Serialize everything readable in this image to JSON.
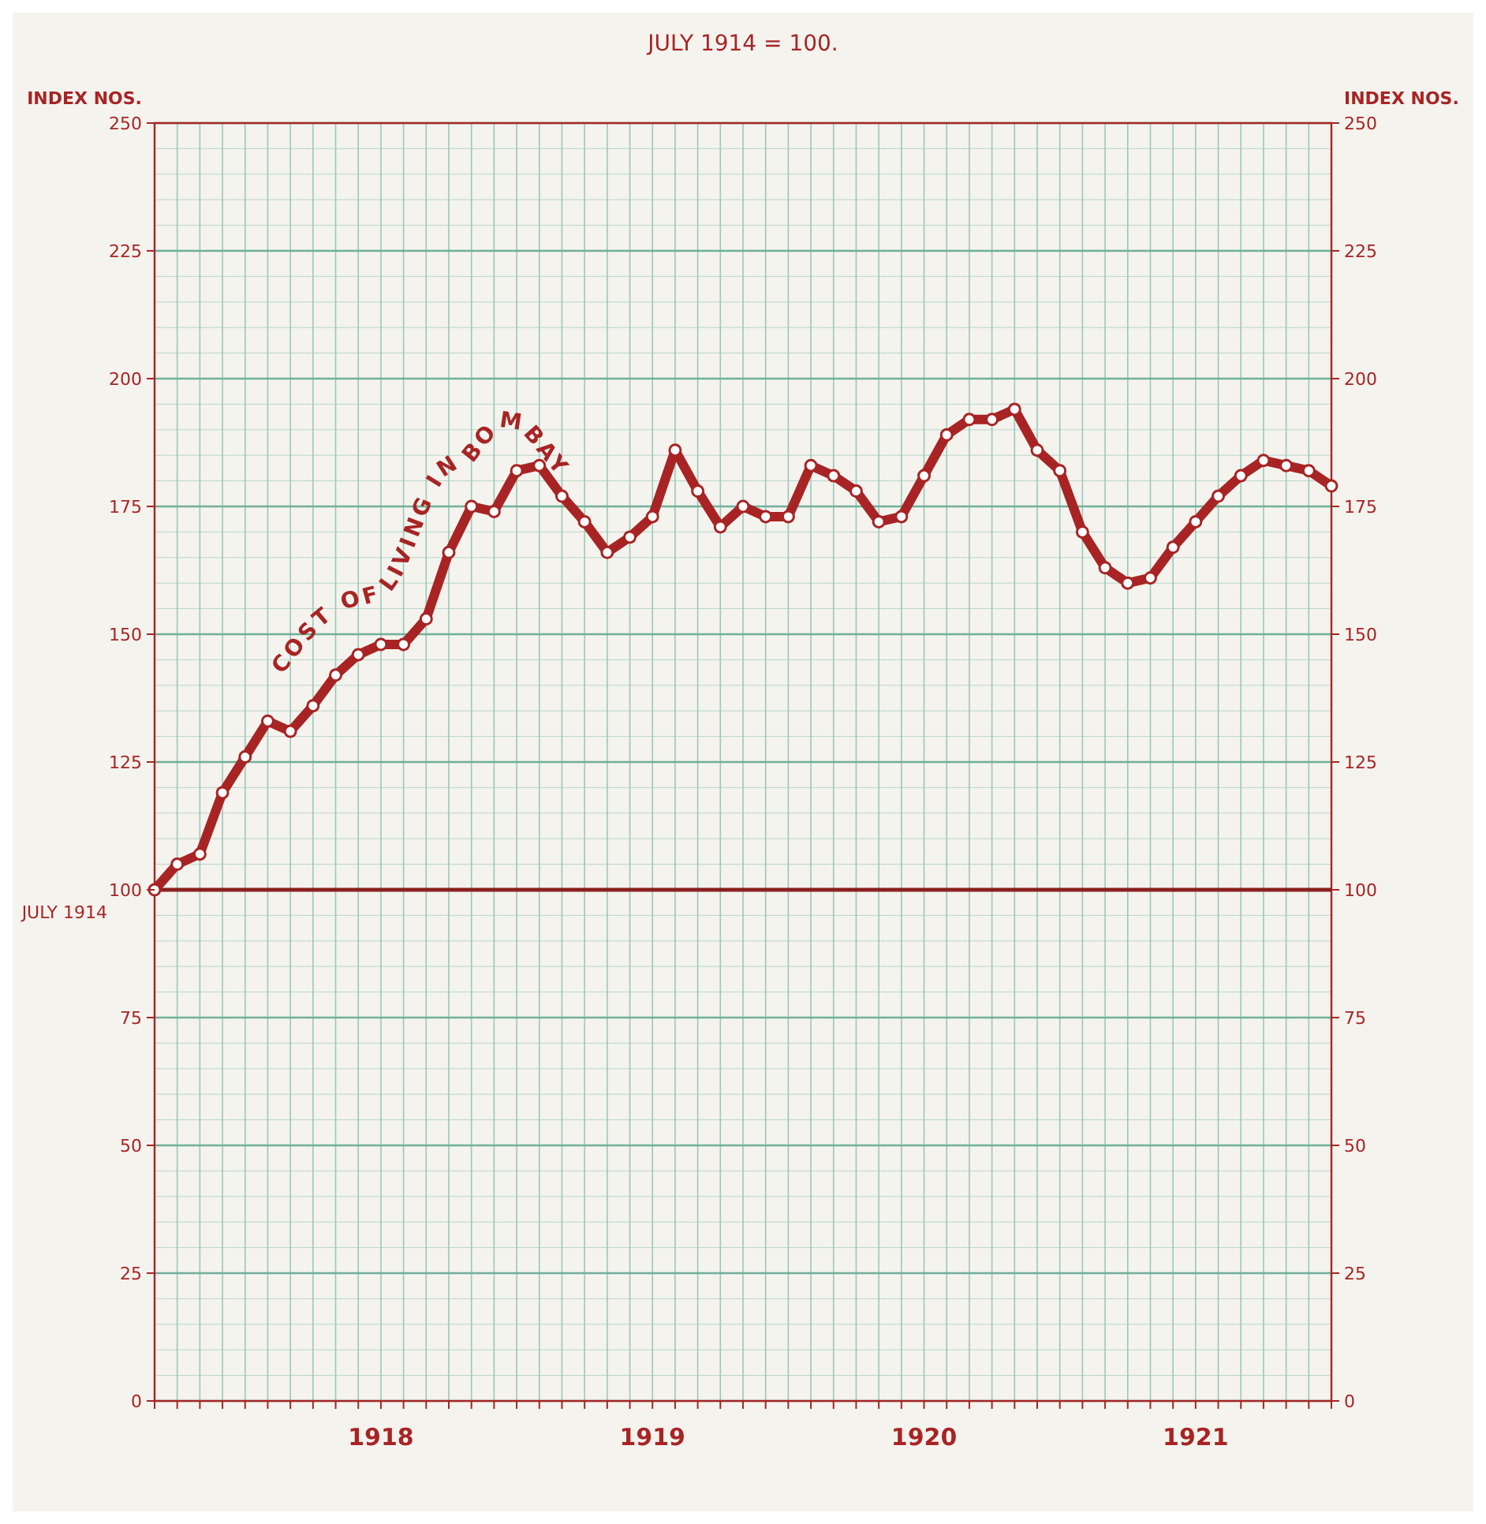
{
  "chart_data": {
    "type": "line",
    "subtitle": "JULY 1914 = 100.",
    "ylabel": "INDEX NOS.",
    "y2label": "INDEX NOS.",
    "categories": [
      null,
      null,
      null,
      null,
      null,
      null,
      null,
      null,
      null,
      null,
      "1918",
      null,
      null,
      null,
      null,
      null,
      null,
      null,
      null,
      null,
      null,
      null,
      "1919",
      null,
      null,
      null,
      null,
      null,
      null,
      null,
      null,
      null,
      null,
      null,
      "1920",
      null,
      null,
      null,
      null,
      null,
      null,
      null,
      null,
      null,
      null,
      null,
      "1921",
      null,
      null,
      null,
      null,
      null,
      null
    ],
    "series": [
      {
        "name": "COST OF LIVING IN BOMBAY",
        "color": "#a82424",
        "values": [
          100,
          105,
          107,
          119,
          126,
          133,
          131,
          136,
          142,
          146,
          148,
          148,
          153,
          166,
          175,
          174,
          182,
          183,
          177,
          172,
          166,
          169,
          173,
          186,
          178,
          171,
          175,
          173,
          173,
          183,
          181,
          178,
          172,
          173,
          181,
          189,
          192,
          192,
          194,
          186,
          182,
          170,
          163,
          160,
          161,
          167,
          172,
          177,
          181,
          184,
          183,
          182,
          179
        ]
      }
    ],
    "ylim": [
      0,
      250
    ],
    "yticks": [
      0,
      25,
      50,
      75,
      100,
      125,
      150,
      175,
      200,
      225,
      250
    ],
    "y2lim": [
      0,
      250
    ],
    "y2ticks": [
      0,
      25,
      50,
      75,
      100,
      125,
      150,
      175,
      200,
      225,
      250
    ],
    "ref_lines": [
      {
        "axis": "y",
        "value": 100,
        "label": "JULY 1914",
        "color": "#8a2020"
      }
    ],
    "grid": true,
    "marker": "circle",
    "line_style": "solid"
  }
}
